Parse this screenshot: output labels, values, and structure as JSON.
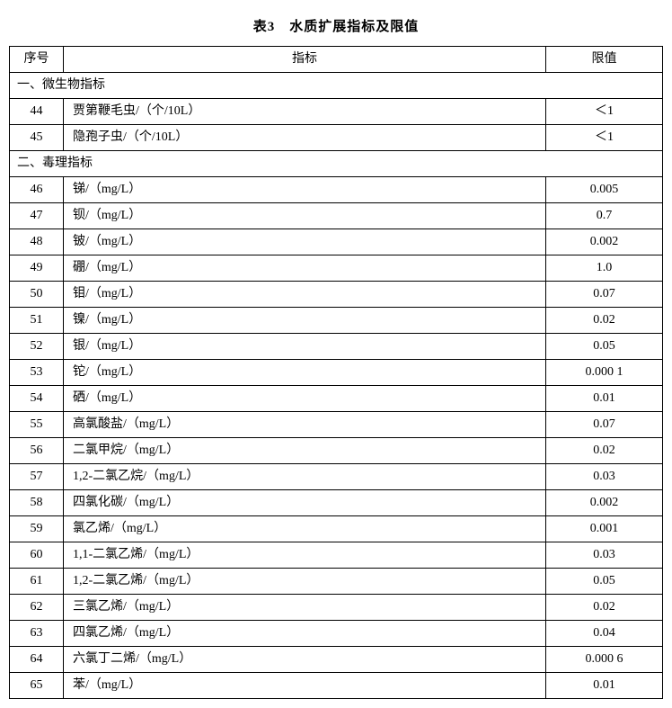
{
  "title": "表3　水质扩展指标及限值",
  "headers": {
    "no": "序号",
    "indicator": "指标",
    "limit": "限值"
  },
  "sections": [
    {
      "label": "一、微生物指标",
      "rows": [
        {
          "no": "44",
          "indicator": "贾第鞭毛虫/（个/10L）",
          "limit": "＜1"
        },
        {
          "no": "45",
          "indicator": "隐孢子虫/（个/10L）",
          "limit": "＜1"
        }
      ]
    },
    {
      "label": "二、毒理指标",
      "rows": [
        {
          "no": "46",
          "indicator": "锑/（mg/L）",
          "limit": "0.005"
        },
        {
          "no": "47",
          "indicator": "钡/（mg/L）",
          "limit": "0.7"
        },
        {
          "no": "48",
          "indicator": "铍/（mg/L）",
          "limit": "0.002"
        },
        {
          "no": "49",
          "indicator": "硼/（mg/L）",
          "limit": "1.0"
        },
        {
          "no": "50",
          "indicator": "钼/（mg/L）",
          "limit": "0.07"
        },
        {
          "no": "51",
          "indicator": "镍/（mg/L）",
          "limit": "0.02"
        },
        {
          "no": "52",
          "indicator": "银/（mg/L）",
          "limit": "0.05"
        },
        {
          "no": "53",
          "indicator": "铊/（mg/L）",
          "limit": "0.000 1"
        },
        {
          "no": "54",
          "indicator": "硒/（mg/L）",
          "limit": "0.01"
        },
        {
          "no": "55",
          "indicator": "高氯酸盐/（mg/L）",
          "limit": "0.07"
        },
        {
          "no": "56",
          "indicator": "二氯甲烷/（mg/L）",
          "limit": "0.02"
        },
        {
          "no": "57",
          "indicator": "1,2-二氯乙烷/（mg/L）",
          "limit": "0.03"
        },
        {
          "no": "58",
          "indicator": "四氯化碳/（mg/L）",
          "limit": "0.002"
        },
        {
          "no": "59",
          "indicator": "氯乙烯/（mg/L）",
          "limit": "0.001"
        },
        {
          "no": "60",
          "indicator": "1,1-二氯乙烯/（mg/L）",
          "limit": "0.03"
        },
        {
          "no": "61",
          "indicator": "1,2-二氯乙烯/（mg/L）",
          "limit": "0.05"
        },
        {
          "no": "62",
          "indicator": "三氯乙烯/（mg/L）",
          "limit": "0.02"
        },
        {
          "no": "63",
          "indicator": "四氯乙烯/（mg/L）",
          "limit": "0.04"
        },
        {
          "no": "64",
          "indicator": "六氯丁二烯/（mg/L）",
          "limit": "0.000 6"
        },
        {
          "no": "65",
          "indicator": "苯/（mg/L）",
          "limit": "0.01"
        }
      ]
    }
  ]
}
